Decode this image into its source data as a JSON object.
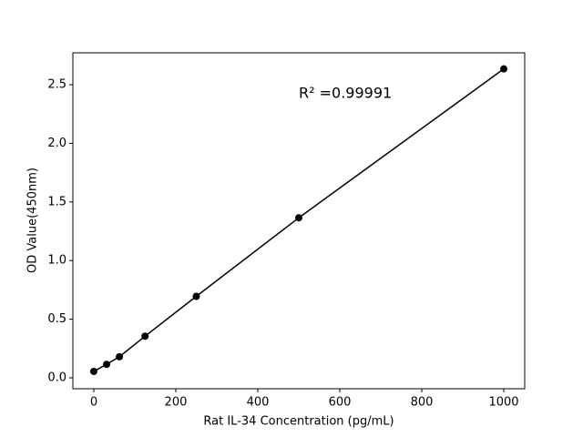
{
  "chart_data": {
    "type": "line",
    "xlabel": "Rat IL-34 Concentration (pg/mL)",
    "ylabel": "OD Value(450nm)",
    "annotation": "R² =0.99991",
    "x": [
      0,
      31.25,
      62.5,
      125,
      250,
      500,
      1000
    ],
    "series": [
      {
        "color": "#000000",
        "values": [
          0.055,
          0.115,
          0.18,
          0.355,
          0.695,
          1.365,
          2.635
        ]
      }
    ],
    "xlim": [
      -51,
      1051
    ],
    "ylim": [
      -0.093,
      2.772
    ],
    "xticks": [
      0,
      200,
      400,
      600,
      800,
      1000
    ],
    "yticks": [
      {
        "value": 0,
        "label": "0.0"
      },
      0.5,
      {
        "value": 1,
        "label": "1.0"
      },
      1.5,
      {
        "value": 2,
        "label": "2.0"
      },
      2.5
    ]
  }
}
